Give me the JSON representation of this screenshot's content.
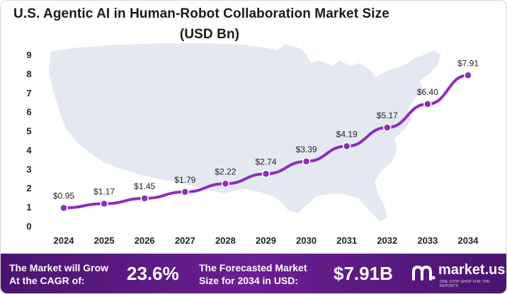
{
  "header": {
    "title_line1": "U.S. Agentic AI in Human-Robot Collaboration Market Size",
    "title_line2": "(USD Bn)"
  },
  "chart_data": {
    "type": "line",
    "title": "U.S. Agentic AI in Human-Robot Collaboration Market Size (USD Bn)",
    "categories": [
      "2024",
      "2025",
      "2026",
      "2027",
      "2028",
      "2029",
      "2030",
      "2031",
      "2032",
      "2033",
      "2034"
    ],
    "values": [
      0.95,
      1.17,
      1.45,
      1.79,
      2.22,
      2.74,
      3.39,
      4.19,
      5.17,
      6.4,
      7.91
    ],
    "data_labels": [
      "$0.95",
      "$1.17",
      "$1.45",
      "$1.79",
      "$2.22",
      "$2.74",
      "$3.39",
      "$4.19",
      "$5.17",
      "$6.40",
      "$7.91"
    ],
    "y_ticks": [
      "0",
      "1",
      "2",
      "3",
      "4",
      "5",
      "6",
      "7",
      "8",
      "9"
    ],
    "ylim": [
      0,
      9
    ],
    "grid": false,
    "line_color": "#8e2dbb",
    "background_shape": "usa-map"
  },
  "footer": {
    "cagr_label": "The Market will Grow At the CAGR of:",
    "cagr_value": "23.6%",
    "forecast_label": "The Forecasted Market Size for 2034 in USD:",
    "forecast_value": "$7.91B",
    "brand_name": "market.us",
    "brand_tagline": "ONE STOP SHOP FOR THE REPORTS"
  },
  "colors": {
    "footer_bg": "#5b1a82",
    "line": "#8e2dbb",
    "map": "#e4e9f1"
  }
}
